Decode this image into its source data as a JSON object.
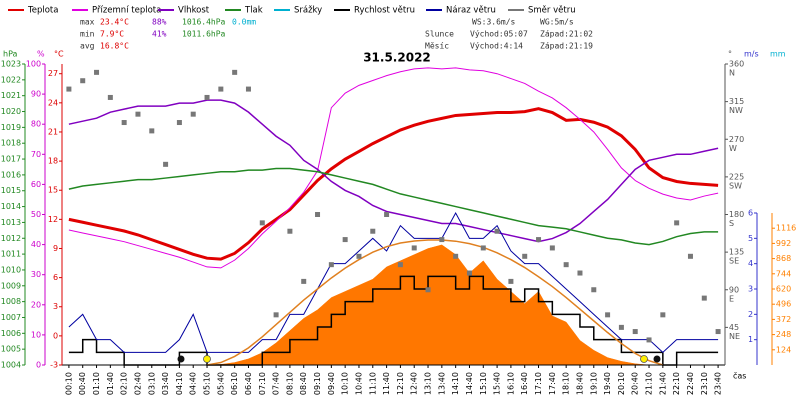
{
  "chart_data": {
    "type": "line",
    "title": "31.5.2022",
    "x_label": "čas",
    "categories": [
      "00:10",
      "00:40",
      "01:10",
      "01:40",
      "02:10",
      "02:40",
      "03:10",
      "03:40",
      "04:10",
      "04:40",
      "05:10",
      "05:40",
      "06:10",
      "06:40",
      "07:10",
      "07:40",
      "08:10",
      "08:40",
      "09:10",
      "09:40",
      "10:10",
      "10:40",
      "11:10",
      "11:40",
      "12:10",
      "12:40",
      "13:10",
      "13:40",
      "14:10",
      "14:40",
      "15:10",
      "15:40",
      "16:10",
      "16:40",
      "17:10",
      "17:40",
      "18:10",
      "18:40",
      "19:10",
      "19:40",
      "20:10",
      "20:40",
      "21:10",
      "21:40",
      "22:10",
      "22:40",
      "23:10",
      "23:40"
    ],
    "stats": {
      "max": {
        "label": "max",
        "items": [
          {
            "text": "23.4°C",
            "color": "#dd0000"
          },
          {
            "text": "88%",
            "color": "#8000c0"
          },
          {
            "text": "1016.4hPa",
            "color": "#228822"
          },
          {
            "text": "0.0mm",
            "color": "#00b0d0"
          }
        ]
      },
      "min": {
        "label": "min",
        "items": [
          {
            "text": "7.9°C",
            "color": "#dd0000"
          },
          {
            "text": "41%",
            "color": "#8000c0"
          },
          {
            "text": "1011.6hPa",
            "color": "#228822"
          }
        ]
      },
      "avg": {
        "label": "avg",
        "items": [
          {
            "text": "16.8°C",
            "color": "#dd0000"
          }
        ]
      },
      "wind": [
        "WS:3.6m/s",
        "WG:5m/s"
      ],
      "sun": [
        "Slunce",
        "Východ:05:07",
        "Západ:21:02"
      ],
      "moon": [
        "Měsíc",
        "Východ:4:14",
        "Západ:21:19"
      ]
    },
    "axes": {
      "pressure": {
        "label": "hPa",
        "color": "#228822",
        "ylim": [
          1004,
          1023
        ],
        "yticks": [
          1004,
          1005,
          1006,
          1007,
          1008,
          1009,
          1010,
          1011,
          1012,
          1013,
          1014,
          1015,
          1016,
          1017,
          1018,
          1019,
          1020,
          1021,
          1022,
          1023
        ]
      },
      "humidity": {
        "label": "%",
        "color": "#cc00cc",
        "ylim": [
          0,
          100
        ],
        "yticks": [
          0,
          10,
          20,
          30,
          40,
          50,
          60,
          70,
          80,
          90,
          100
        ]
      },
      "temperature": {
        "label": "°C",
        "color": "#dd0000",
        "ylim": [
          -3,
          28
        ],
        "yticks": [
          -3,
          0,
          3,
          6,
          9,
          12,
          15,
          18,
          21,
          24,
          27
        ]
      },
      "direction": {
        "label": "°",
        "color": "#555555",
        "ylim": [
          0,
          360
        ],
        "yticks": [
          45,
          90,
          135,
          180,
          225,
          270,
          315,
          360
        ],
        "tick_names": [
          "NE",
          "E",
          "SE",
          "S",
          "SW",
          "W",
          "NW",
          "N"
        ]
      },
      "wind": {
        "label": "m/s",
        "color": "#3333cc",
        "ylim": [
          0,
          6
        ],
        "yticks": [
          1,
          2,
          3,
          4,
          5,
          6
        ]
      },
      "solar": {
        "color": "#ff8000",
        "ylim": [
          0,
          1240
        ],
        "yticks": [
          124,
          248,
          372,
          496,
          620,
          744,
          868,
          992,
          1116
        ]
      },
      "rain": {
        "label": "mm",
        "color": "#00b0d0"
      }
    },
    "series": [
      {
        "name": "Teplota",
        "color": "#e00000",
        "axis": "temperature",
        "style": "line",
        "width": 3,
        "values": [
          12.0,
          11.7,
          11.4,
          11.1,
          10.8,
          10.4,
          9.9,
          9.4,
          8.9,
          8.4,
          8.0,
          7.9,
          8.5,
          9.6,
          11.0,
          12.0,
          13.0,
          14.5,
          16.0,
          17.2,
          18.2,
          19.0,
          19.8,
          20.5,
          21.2,
          21.7,
          22.1,
          22.4,
          22.7,
          22.8,
          22.9,
          23.0,
          23.0,
          23.1,
          23.4,
          23.0,
          22.2,
          22.3,
          22.0,
          21.5,
          20.6,
          19.2,
          17.3,
          16.3,
          15.9,
          15.7,
          15.6,
          15.5
        ]
      },
      {
        "name": "Přízemní teplota",
        "color": "#e000e0",
        "axis": "temperature",
        "style": "line",
        "width": 1,
        "values": [
          10.9,
          10.6,
          10.3,
          10.0,
          9.7,
          9.3,
          8.9,
          8.5,
          8.1,
          7.6,
          7.1,
          7.0,
          7.8,
          9.0,
          10.5,
          11.8,
          13.2,
          14.8,
          17.0,
          23.5,
          25.0,
          25.8,
          26.3,
          26.8,
          27.2,
          27.5,
          27.6,
          27.5,
          27.6,
          27.4,
          27.3,
          27.0,
          26.5,
          26.0,
          25.2,
          24.5,
          23.5,
          22.3,
          21.0,
          19.2,
          17.3,
          16.0,
          15.2,
          14.6,
          14.2,
          14.0,
          14.4,
          14.7
        ]
      },
      {
        "name": "Vlhkost",
        "color": "#8000c0",
        "axis": "humidity",
        "style": "line",
        "width": 1.5,
        "values": [
          80,
          81,
          82,
          84,
          85,
          86,
          86,
          86,
          87,
          87,
          88,
          88,
          87,
          84,
          80,
          76,
          73,
          68,
          65,
          61,
          58,
          56,
          53,
          51,
          50,
          49,
          48,
          47,
          47,
          46,
          45,
          44,
          43,
          42,
          41,
          42,
          44,
          47,
          51,
          55,
          60,
          65,
          68,
          69,
          70,
          70,
          71,
          72
        ]
      },
      {
        "name": "Tlak",
        "color": "#228822",
        "axis": "pressure",
        "style": "line",
        "width": 1.5,
        "values": [
          1015.1,
          1015.3,
          1015.4,
          1015.5,
          1015.6,
          1015.7,
          1015.7,
          1015.8,
          1015.9,
          1016.0,
          1016.1,
          1016.2,
          1016.2,
          1016.3,
          1016.3,
          1016.4,
          1016.4,
          1016.3,
          1016.2,
          1016.0,
          1015.8,
          1015.6,
          1015.4,
          1015.1,
          1014.8,
          1014.6,
          1014.4,
          1014.2,
          1014.0,
          1013.8,
          1013.6,
          1013.4,
          1013.2,
          1013.0,
          1012.8,
          1012.7,
          1012.6,
          1012.4,
          1012.2,
          1012.0,
          1011.9,
          1011.7,
          1011.6,
          1011.8,
          1012.1,
          1012.3,
          1012.4,
          1012.4
        ]
      },
      {
        "name": "Srážky",
        "color": "#00b0d0",
        "axis": "rain",
        "style": "none"
      },
      {
        "name": "Rychlost větru",
        "color": "#000000",
        "axis": "wind",
        "style": "step",
        "width": 1.5,
        "values": [
          0.5,
          1,
          0.5,
          0.5,
          0,
          0,
          0,
          0,
          0.5,
          0.5,
          0,
          0,
          0,
          0,
          0.5,
          0.5,
          1,
          1,
          1.5,
          2,
          2.5,
          2.5,
          3,
          3,
          3.5,
          3,
          3.5,
          3.5,
          3,
          3.5,
          3,
          3,
          2.5,
          3,
          2.5,
          2,
          2,
          1.5,
          1,
          1,
          0.5,
          0.5,
          0.5,
          0,
          0.5,
          0.5,
          0.5,
          0.5
        ]
      },
      {
        "name": "Náraz větru",
        "color": "#0000a0",
        "axis": "wind",
        "style": "line",
        "width": 1,
        "values": [
          1.5,
          2,
          1,
          1,
          0.5,
          0.5,
          0.5,
          0.5,
          1,
          2,
          0.5,
          0.5,
          0.5,
          0.5,
          1,
          1,
          2,
          2,
          3,
          4,
          4,
          4.5,
          5,
          4.5,
          5.5,
          5,
          5,
          5,
          6,
          5,
          5,
          5.5,
          4.5,
          4,
          4,
          3.5,
          3,
          2.5,
          2,
          1.5,
          1,
          1,
          1,
          0.5,
          1,
          1,
          1,
          1
        ]
      },
      {
        "name": "Směr větru",
        "color": "#777777",
        "axis": "direction",
        "style": "scatter",
        "values": [
          330,
          340,
          350,
          320,
          290,
          300,
          280,
          240,
          290,
          300,
          320,
          330,
          350,
          330,
          170,
          60,
          160,
          100,
          180,
          120,
          150,
          130,
          160,
          180,
          120,
          140,
          90,
          150,
          130,
          110,
          140,
          160,
          100,
          130,
          150,
          140,
          120,
          110,
          90,
          60,
          45,
          40,
          30,
          60,
          170,
          130,
          80,
          40
        ]
      },
      {
        "color": "#ff7700",
        "axis": "solar",
        "style": "area",
        "values": [
          0,
          0,
          0,
          0,
          0,
          0,
          0,
          0,
          0,
          0,
          0,
          5,
          20,
          50,
          100,
          180,
          280,
          380,
          450,
          550,
          600,
          650,
          700,
          800,
          850,
          900,
          950,
          980,
          900,
          750,
          850,
          700,
          600,
          500,
          600,
          400,
          350,
          200,
          120,
          60,
          30,
          10,
          0,
          0,
          0,
          0,
          0,
          0
        ]
      },
      {
        "color": "#e08020",
        "axis": "solar",
        "style": "line",
        "width": 1.5,
        "values": [
          null,
          null,
          null,
          null,
          null,
          null,
          null,
          null,
          null,
          null,
          0,
          20,
          70,
          140,
          230,
          330,
          430,
          530,
          620,
          710,
          790,
          860,
          920,
          965,
          995,
          1012,
          1020,
          1020,
          1010,
          990,
          960,
          915,
          860,
          795,
          720,
          640,
          550,
          455,
          360,
          265,
          175,
          95,
          35,
          0,
          null,
          null,
          null,
          null
        ]
      }
    ]
  }
}
